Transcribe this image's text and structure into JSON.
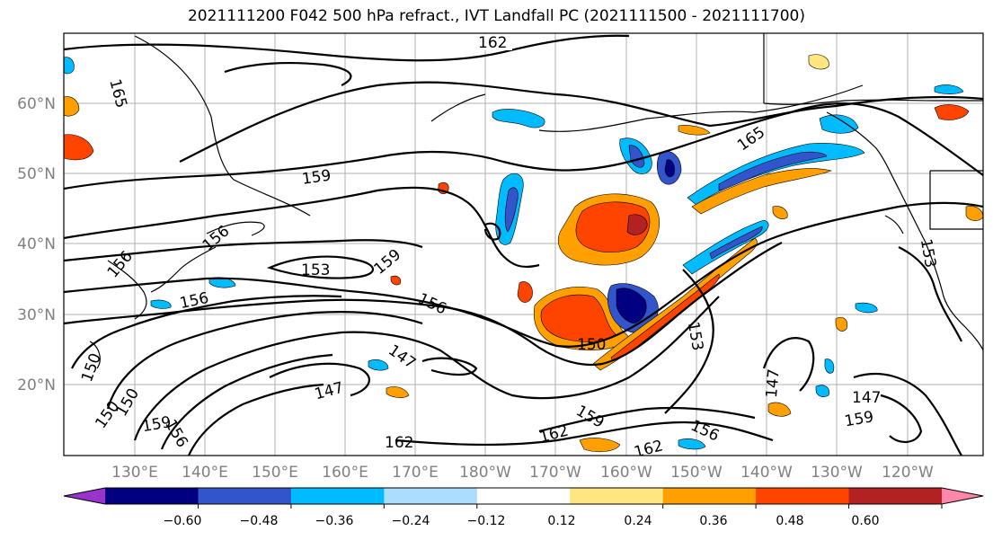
{
  "title": "2021111200 F042 500 hPa refract., IVT Landfall PC (2021111500 - 2021111700)",
  "lat_labels": [
    "20°N",
    "30°N",
    "40°N",
    "50°N",
    "60°N"
  ],
  "lon_labels": [
    "130°E",
    "140°E",
    "150°E",
    "160°E",
    "170°E",
    "180°W",
    "170°W",
    "160°W",
    "150°W",
    "140°W",
    "130°W",
    "120°W"
  ],
  "contour_labels": [
    "162",
    "165",
    "165",
    "159",
    "156",
    "153",
    "159",
    "156",
    "156",
    "156",
    "153",
    "150",
    "147",
    "147",
    "150",
    "147",
    "147",
    "159",
    "162",
    "162",
    "162",
    "159",
    "156",
    "150",
    "150",
    "153",
    "156",
    "159"
  ],
  "colorbar": {
    "colors": [
      "#9933cc",
      "#000080",
      "#3355cc",
      "#00bbff",
      "#aaddff",
      "#ffffff",
      "#ffe680",
      "#ffa000",
      "#ff4400",
      "#b22222",
      "#ff88aa"
    ],
    "ticks": [
      "−0.60",
      "−0.48",
      "−0.36",
      "−0.24",
      "−0.12",
      "0.12",
      "0.24",
      "0.36",
      "0.48",
      "0.60"
    ]
  }
}
